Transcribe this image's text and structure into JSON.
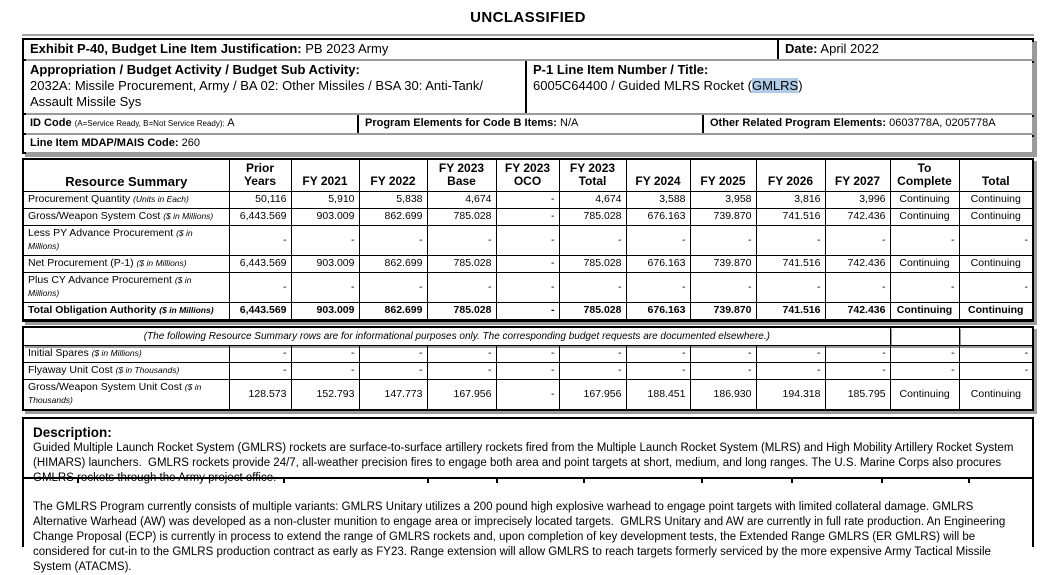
{
  "colors": {
    "highlight": "#aecbe8"
  },
  "classification": "UNCLASSIFIED",
  "header": {
    "exhibit_label": "Exhibit P-40, Budget Line Item Justification:",
    "exhibit_value": "PB 2023 Army",
    "date_label": "Date:",
    "date_value": "April 2022",
    "appropriation_label": "Appropriation / Budget Activity / Budget Sub Activity:",
    "appropriation_value": "2032A: Missile Procurement, Army / BA 02: Other Missiles / BSA 30: Anti-Tank/ Assault Missile Sys",
    "p1_label": "P-1 Line Item Number / Title:",
    "p1_value_prefix": "6005C64400 / Guided MLRS Rocket (",
    "p1_value_highlight": "GMLRS",
    "p1_value_suffix": ")",
    "id_code_label": "ID Code",
    "id_code_paren": "(A=Service Ready, B=Not Service Ready):",
    "id_code_value": "A",
    "program_elements_label": "Program Elements for Code B Items:",
    "program_elements_value": "N/A",
    "other_related_label": "Other Related Program Elements:",
    "other_related_value": "0603778A, 0205778A",
    "mdap_label": "Line Item MDAP/MAIS Code:",
    "mdap_value": "260"
  },
  "resource_table": {
    "columns": [
      "Resource Summary",
      "Prior\nYears",
      "FY 2021",
      "FY 2022",
      "FY 2023\nBase",
      "FY 2023\nOCO",
      "FY 2023\nTotal",
      "FY 2024",
      "FY 2025",
      "FY 2026",
      "FY 2027",
      "To\nComplete",
      "Total"
    ],
    "rows": [
      {
        "label": "Procurement Quantity",
        "unit": "(Units in Each)",
        "bold": false,
        "values": [
          "50,116",
          "5,910",
          "5,838",
          "4,674",
          "-",
          "4,674",
          "3,588",
          "3,958",
          "3,816",
          "3,996",
          "Continuing",
          "Continuing"
        ]
      },
      {
        "label": "Gross/Weapon System Cost",
        "unit": "($ in Millions)",
        "bold": false,
        "values": [
          "6,443.569",
          "903.009",
          "862.699",
          "785.028",
          "-",
          "785.028",
          "676.163",
          "739.870",
          "741.516",
          "742.436",
          "Continuing",
          "Continuing"
        ]
      },
      {
        "label": "Less PY Advance Procurement",
        "unit": "($ in Millions)",
        "bold": false,
        "values": [
          "-",
          "-",
          "-",
          "-",
          "-",
          "-",
          "-",
          "-",
          "-",
          "-",
          "-",
          "-"
        ]
      },
      {
        "label": "Net Procurement (P-1)",
        "unit": "($ in Millions)",
        "bold": false,
        "values": [
          "6,443.569",
          "903.009",
          "862.699",
          "785.028",
          "-",
          "785.028",
          "676.163",
          "739.870",
          "741.516",
          "742.436",
          "Continuing",
          "Continuing"
        ]
      },
      {
        "label": "Plus CY Advance Procurement",
        "unit": "($ in Millions)",
        "bold": false,
        "values": [
          "-",
          "-",
          "-",
          "-",
          "-",
          "-",
          "-",
          "-",
          "-",
          "-",
          "-",
          "-"
        ]
      },
      {
        "label": "Total Obligation Authority",
        "unit": "($ in Millions)",
        "bold": true,
        "values": [
          "6,443.569",
          "903.009",
          "862.699",
          "785.028",
          "-",
          "785.028",
          "676.163",
          "739.870",
          "741.516",
          "742.436",
          "Continuing",
          "Continuing"
        ]
      }
    ],
    "note": "(The following Resource Summary rows are for informational purposes only. The corresponding budget requests are documented elsewhere.)",
    "info_rows": [
      {
        "label": "Initial Spares",
        "unit": "($ in Millions)",
        "bold": false,
        "values": [
          "-",
          "-",
          "-",
          "-",
          "-",
          "-",
          "-",
          "-",
          "-",
          "-",
          "-",
          "-"
        ]
      },
      {
        "label": "Flyaway Unit Cost",
        "unit": "($ in Thousands)",
        "bold": false,
        "values": [
          "-",
          "-",
          "-",
          "-",
          "-",
          "-",
          "-",
          "-",
          "-",
          "-",
          "-",
          "-"
        ]
      },
      {
        "label": "Gross/Weapon System Unit Cost",
        "unit": "($ in Thousands)",
        "bold": false,
        "values": [
          "128.573",
          "152.793",
          "147.773",
          "167.956",
          "-",
          "167.956",
          "188.451",
          "186.930",
          "194.318",
          "185.795",
          "Continuing",
          "Continuing"
        ]
      }
    ]
  },
  "description": {
    "heading": "Description:",
    "paragraph1": "Guided Multiple Launch Rocket System (GMLRS) rockets are surface-to-surface artillery rockets fired from the Multiple Launch Rocket System (MLRS) and High Mobility Artillery Rocket System (HIMARS) launchers.  GMLRS rockets provide 24/7, all-weather precision fires to engage both area and point targets at short, medium, and long ranges. The U.S. Marine Corps also procures GMLRS rockets through the Army project office.",
    "paragraph2": "The GMLRS Program currently consists of multiple variants: GMLRS Unitary utilizes a 200 pound high explosive warhead to engage point targets with limited collateral damage. GMLRS Alternative Warhead (AW) was developed as a non-cluster munition to engage area or imprecisely located targets.  GMLRS Unitary and AW are currently in full rate production. An Engineering Change Proposal (ECP) is currently in process to extend the range of GMLRS rockets and, upon completion of key development tests, the Extended Range GMLRS (ER GMLRS) will be considered for cut-in to the GMLRS production contract as early as FY23. Range extension will allow GMLRS to reach targets formerly serviced by the more expensive Army Tactical Missile System (ATACMS)."
  }
}
